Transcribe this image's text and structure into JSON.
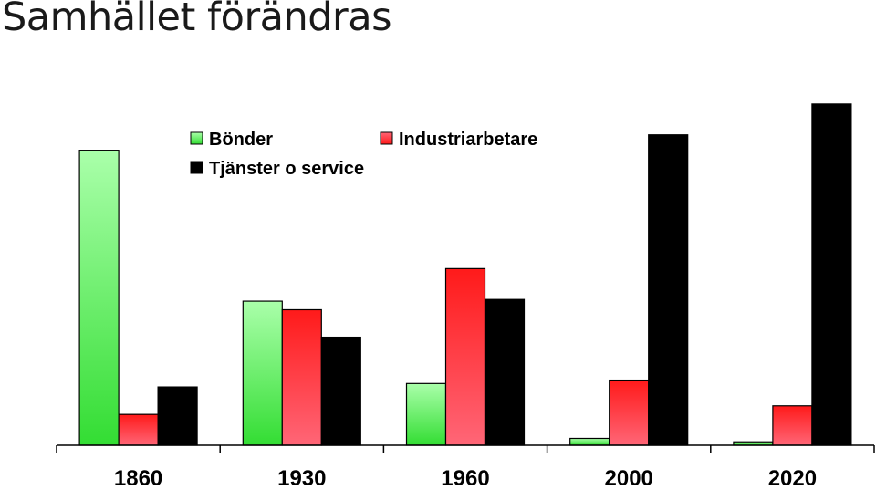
{
  "page": {
    "title": "Samhället förändras"
  },
  "chart_data": {
    "type": "bar",
    "title": "",
    "xlabel": "",
    "ylabel": "",
    "ylim": [
      0,
      100
    ],
    "grid": false,
    "legend_placement": "top-left",
    "categories": [
      "1860",
      "1930",
      "1960",
      "2000",
      "2020"
    ],
    "series": [
      {
        "name": "Bönder",
        "values": [
          86,
          42,
          18,
          2,
          1
        ],
        "color": "#33dd33",
        "color_light": "#aaffaa"
      },
      {
        "name": "Industriarbetare",
        "values": [
          9,
          39.5,
          51.5,
          19,
          11.5
        ],
        "color": "#ff1a1a",
        "color_light": "#ff6677"
      },
      {
        "name": "Tjänster o service",
        "values": [
          17,
          31.5,
          42.5,
          90.5,
          99.5
        ],
        "color": "#000000",
        "color_light": "#000000"
      }
    ]
  }
}
